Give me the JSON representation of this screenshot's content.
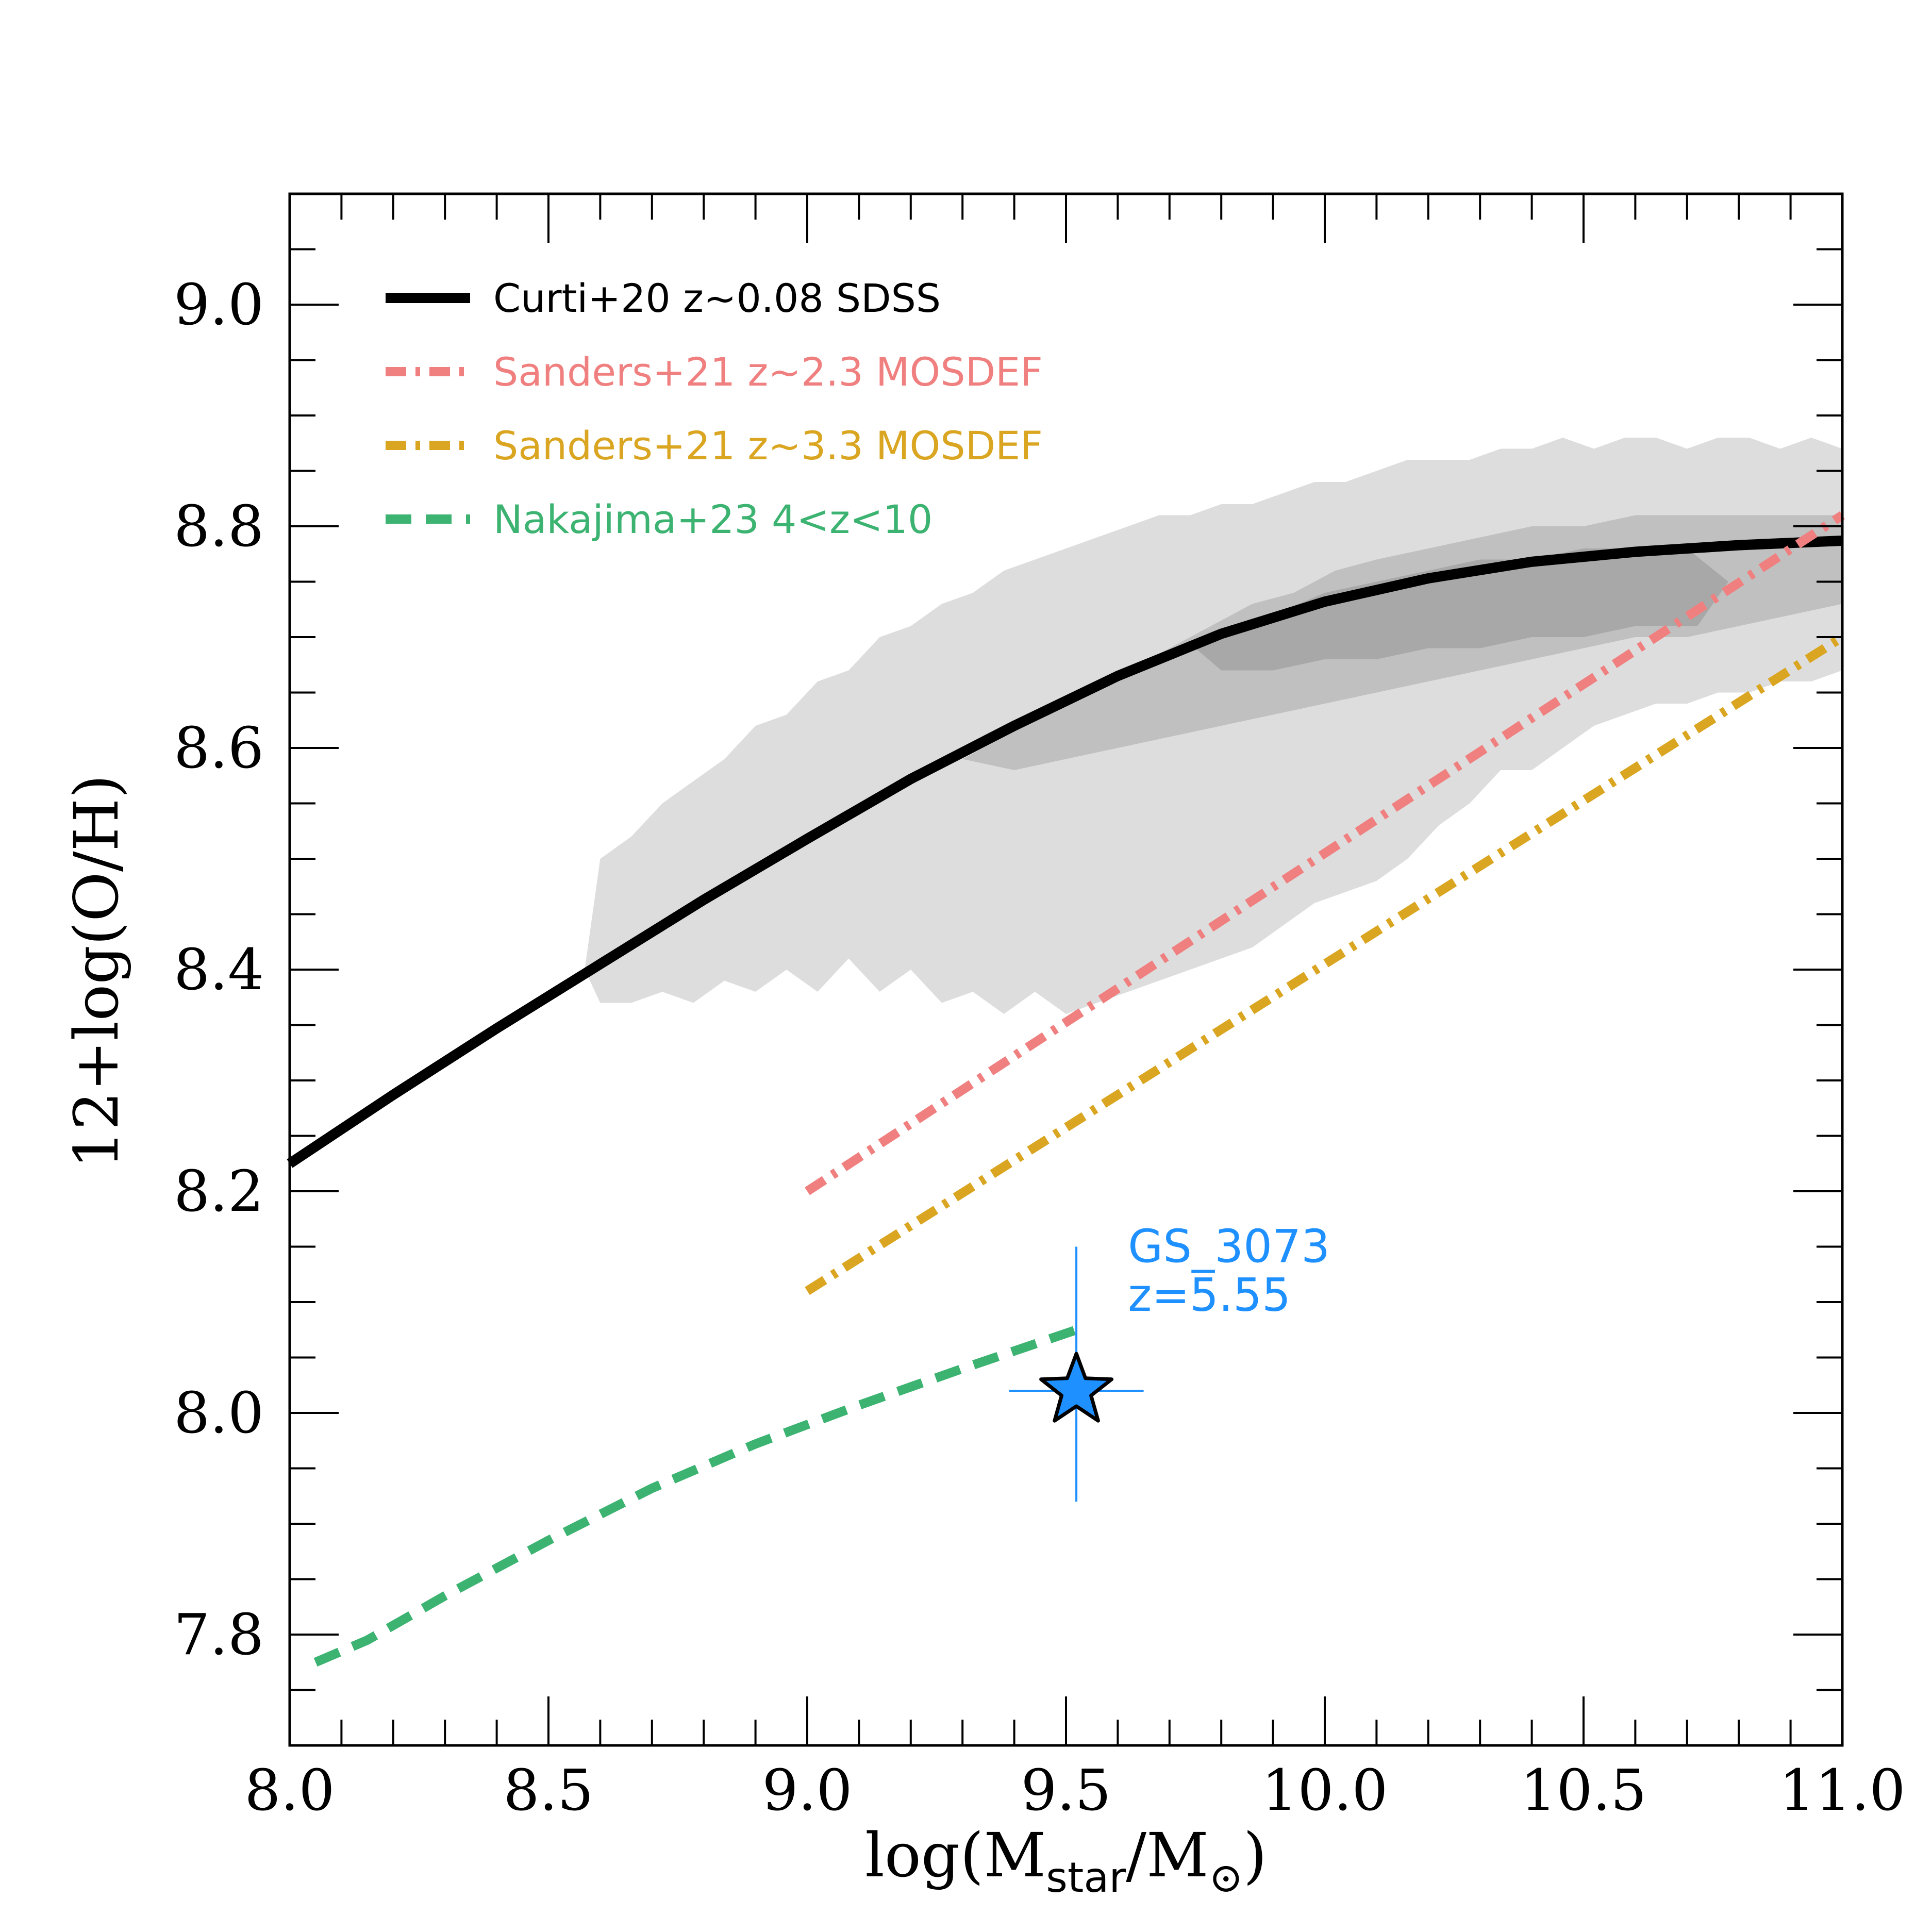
{
  "chart_data": {
    "type": "line",
    "title": "",
    "xlabel": "log(M",
    "xlabel_sub": "star",
    "xlabel_slash": "/M",
    "xlabel_sun": "⊙",
    "xlabel_close": ")",
    "ylabel": "12+log(O/H)",
    "xlim": [
      8.0,
      11.0
    ],
    "ylim": [
      7.7,
      9.1
    ],
    "x_ticks": [
      8.0,
      8.5,
      9.0,
      9.5,
      10.0,
      10.5,
      11.0
    ],
    "x_tick_labels": [
      "8.0",
      "8.5",
      "9.0",
      "9.5",
      "10.0",
      "10.5",
      "11.0"
    ],
    "y_ticks": [
      7.8,
      8.0,
      8.2,
      8.4,
      8.6,
      8.8,
      9.0
    ],
    "y_tick_labels": [
      "7.8",
      "8.0",
      "8.2",
      "8.4",
      "8.6",
      "8.8",
      "9.0"
    ],
    "x_minor_step": 0.1,
    "y_minor_step": 0.05,
    "legend_position": "top-left",
    "series": [
      {
        "name": "Curti+20 z~0.08 SDSS",
        "color": "#000000",
        "style": "solid",
        "x": [
          8.0,
          8.2,
          8.4,
          8.6,
          8.8,
          9.0,
          9.2,
          9.4,
          9.6,
          9.8,
          10.0,
          10.2,
          10.4,
          10.6,
          10.8,
          11.0
        ],
        "y": [
          8.225,
          8.287,
          8.347,
          8.405,
          8.463,
          8.518,
          8.572,
          8.62,
          8.665,
          8.703,
          8.732,
          8.753,
          8.768,
          8.777,
          8.783,
          8.787
        ]
      },
      {
        "name": "Sanders+21 z~2.3 MOSDEF",
        "color": "#f08080",
        "style": "dashdot",
        "x": [
          9.0,
          11.0
        ],
        "y": [
          8.2,
          8.81
        ]
      },
      {
        "name": "Sanders+21 z~3.3 MOSDEF",
        "color": "#daa520",
        "style": "dashdot",
        "x": [
          9.0,
          11.0
        ],
        "y": [
          8.11,
          8.7
        ]
      },
      {
        "name": "Nakajima+23 4<z<10",
        "color": "#3cb371",
        "style": "dashed",
        "x": [
          8.05,
          8.15,
          8.3,
          8.5,
          8.7,
          8.9,
          9.1,
          9.3,
          9.52
        ],
        "y": [
          7.775,
          7.795,
          7.835,
          7.885,
          7.932,
          7.972,
          8.007,
          8.04,
          8.075
        ]
      }
    ],
    "density_contours": [
      {
        "level": "outer",
        "color": "#dddddd",
        "x": [
          8.57,
          8.6,
          8.66,
          8.72,
          8.78,
          8.84,
          8.9,
          8.96,
          9.02,
          9.08,
          9.14,
          9.2,
          9.26,
          9.32,
          9.38,
          9.44,
          9.5,
          9.56,
          9.62,
          9.68,
          9.74,
          9.8,
          9.86,
          9.92,
          9.98,
          10.04,
          10.1,
          10.16,
          10.22,
          10.28,
          10.34,
          10.4,
          10.46,
          10.52,
          10.58,
          10.64,
          10.7,
          10.76,
          10.82,
          10.88,
          10.94,
          11.0,
          11.0,
          10.94,
          10.88,
          10.82,
          10.76,
          10.7,
          10.64,
          10.58,
          10.52,
          10.46,
          10.4,
          10.34,
          10.28,
          10.22,
          10.16,
          10.1,
          10.04,
          9.98,
          9.92,
          9.86,
          9.8,
          9.74,
          9.68,
          9.62,
          9.56,
          9.5,
          9.44,
          9.38,
          9.32,
          9.26,
          9.2,
          9.14,
          9.08,
          9.02,
          8.96,
          8.9,
          8.84,
          8.78,
          8.72,
          8.66,
          8.6
        ],
        "y": [
          8.4,
          8.5,
          8.52,
          8.55,
          8.57,
          8.59,
          8.62,
          8.63,
          8.66,
          8.67,
          8.7,
          8.71,
          8.73,
          8.74,
          8.76,
          8.77,
          8.78,
          8.79,
          8.8,
          8.81,
          8.81,
          8.82,
          8.82,
          8.83,
          8.84,
          8.84,
          8.85,
          8.86,
          8.86,
          8.86,
          8.87,
          8.87,
          8.88,
          8.87,
          8.88,
          8.88,
          8.87,
          8.88,
          8.88,
          8.87,
          8.88,
          8.87,
          8.67,
          8.66,
          8.66,
          8.65,
          8.65,
          8.64,
          8.64,
          8.63,
          8.62,
          8.6,
          8.58,
          8.58,
          8.55,
          8.53,
          8.5,
          8.48,
          8.47,
          8.46,
          8.44,
          8.42,
          8.41,
          8.4,
          8.39,
          8.38,
          8.37,
          8.36,
          8.38,
          8.36,
          8.38,
          8.37,
          8.4,
          8.38,
          8.41,
          8.38,
          8.4,
          8.38,
          8.39,
          8.37,
          8.38,
          8.37,
          8.37
        ]
      },
      {
        "level": "middle",
        "color": "#c0c0c0",
        "x": [
          9.3,
          9.38,
          9.46,
          9.54,
          9.62,
          9.7,
          9.78,
          9.86,
          9.94,
          10.02,
          10.1,
          10.2,
          10.3,
          10.4,
          10.5,
          10.6,
          10.7,
          10.8,
          10.9,
          11.0,
          11.0,
          10.9,
          10.8,
          10.7,
          10.6,
          10.5,
          10.4,
          10.3,
          10.2,
          10.1,
          10.0,
          9.9,
          9.8,
          9.7,
          9.6,
          9.5,
          9.4
        ],
        "y": [
          8.59,
          8.61,
          8.63,
          8.65,
          8.67,
          8.69,
          8.71,
          8.73,
          8.74,
          8.76,
          8.77,
          8.78,
          8.79,
          8.8,
          8.8,
          8.81,
          8.81,
          8.81,
          8.81,
          8.81,
          8.73,
          8.72,
          8.71,
          8.7,
          8.7,
          8.69,
          8.68,
          8.67,
          8.66,
          8.65,
          8.64,
          8.63,
          8.62,
          8.61,
          8.6,
          8.59,
          8.58
        ]
      },
      {
        "level": "inner",
        "color": "#a8a8a8",
        "x": [
          9.75,
          9.82,
          9.9,
          10.0,
          10.1,
          10.2,
          10.3,
          10.4,
          10.5,
          10.6,
          10.7,
          10.78,
          10.72,
          10.6,
          10.5,
          10.4,
          10.3,
          10.2,
          10.1,
          10.0,
          9.9,
          9.8
        ],
        "y": [
          8.69,
          8.71,
          8.72,
          8.74,
          8.75,
          8.76,
          8.77,
          8.77,
          8.78,
          8.78,
          8.78,
          8.75,
          8.71,
          8.71,
          8.7,
          8.7,
          8.69,
          8.69,
          8.68,
          8.68,
          8.67,
          8.67
        ]
      }
    ],
    "points": [
      {
        "name": "GS_3073",
        "label_line1": "GS_3073",
        "label_line2": "z=5.55",
        "color": "#1e90ff",
        "marker": "star",
        "x": 9.52,
        "y": 8.02,
        "xerr": 0.13,
        "yerr_plus": 0.13,
        "yerr_minus": 0.1
      }
    ]
  }
}
